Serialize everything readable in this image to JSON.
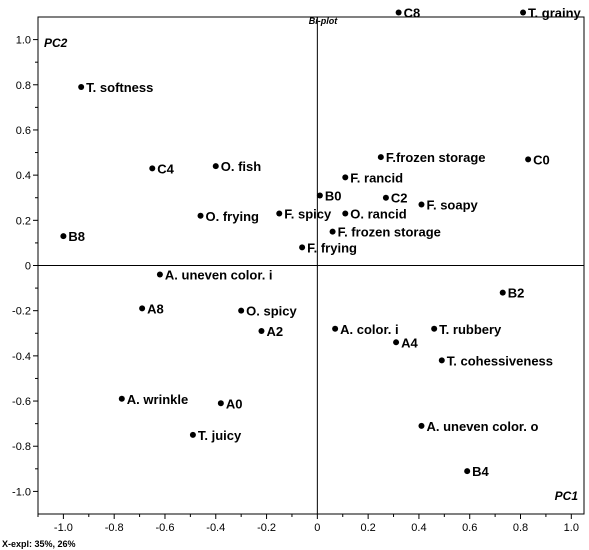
{
  "chart_data": {
    "type": "scatter",
    "title": "Bi-plot",
    "xlabel": "PC1",
    "ylabel": "PC2",
    "footnote": "X-expl: 35%, 26%",
    "xlim": [
      -1.1,
      1.05
    ],
    "ylim": [
      -1.1,
      1.1
    ],
    "xticks": [
      "-1.0",
      "-0.8",
      "-0.6",
      "-0.4",
      "-0.2",
      "0",
      "0.2",
      "0.4",
      "0.6",
      "0.8",
      "1.0"
    ],
    "yticks": [
      "1.0",
      "0.8",
      "0.6",
      "0.4",
      "0.2",
      "0",
      "-0.2",
      "-0.4",
      "-0.6",
      "-0.8",
      "-1.0"
    ],
    "grid": false,
    "points": [
      {
        "label": "C8",
        "x": 0.32,
        "y": 1.12
      },
      {
        "label": "T. grainy",
        "x": 0.81,
        "y": 1.12
      },
      {
        "label": "T. softness",
        "x": -0.93,
        "y": 0.79
      },
      {
        "label": "F.frozen storage",
        "x": 0.25,
        "y": 0.48
      },
      {
        "label": "C0",
        "x": 0.83,
        "y": 0.47
      },
      {
        "label": "C4",
        "x": -0.65,
        "y": 0.43
      },
      {
        "label": "O. fish",
        "x": -0.4,
        "y": 0.44
      },
      {
        "label": "F. rancid",
        "x": 0.11,
        "y": 0.39
      },
      {
        "label": "B0",
        "x": 0.01,
        "y": 0.31
      },
      {
        "label": "C2",
        "x": 0.27,
        "y": 0.3
      },
      {
        "label": "F. soapy",
        "x": 0.41,
        "y": 0.27
      },
      {
        "label": "O. frying",
        "x": -0.46,
        "y": 0.22
      },
      {
        "label": "F. spicy",
        "x": -0.15,
        "y": 0.23
      },
      {
        "label": "O. rancid",
        "x": 0.11,
        "y": 0.23
      },
      {
        "label": "F. frozen storage",
        "x": 0.06,
        "y": 0.15
      },
      {
        "label": "B8",
        "x": -1.0,
        "y": 0.13
      },
      {
        "label": "F. frying",
        "x": -0.06,
        "y": 0.08
      },
      {
        "label": "A. uneven color. i",
        "x": -0.62,
        "y": -0.04
      },
      {
        "label": "B2",
        "x": 0.73,
        "y": -0.12
      },
      {
        "label": "A8",
        "x": -0.69,
        "y": -0.19
      },
      {
        "label": "O. spicy",
        "x": -0.3,
        "y": -0.2
      },
      {
        "label": "A2",
        "x": -0.22,
        "y": -0.29
      },
      {
        "label": "A. color. i",
        "x": 0.07,
        "y": -0.28
      },
      {
        "label": "T. rubbery",
        "x": 0.46,
        "y": -0.28
      },
      {
        "label": "A4",
        "x": 0.31,
        "y": -0.34
      },
      {
        "label": "T. cohessiveness",
        "x": 0.49,
        "y": -0.42
      },
      {
        "label": "A. wrinkle",
        "x": -0.77,
        "y": -0.59
      },
      {
        "label": "A0",
        "x": -0.38,
        "y": -0.61
      },
      {
        "label": "A. uneven color. o",
        "x": 0.41,
        "y": -0.71
      },
      {
        "label": "T. juicy",
        "x": -0.49,
        "y": -0.75
      },
      {
        "label": "B4",
        "x": 0.59,
        "y": -0.91
      }
    ]
  }
}
